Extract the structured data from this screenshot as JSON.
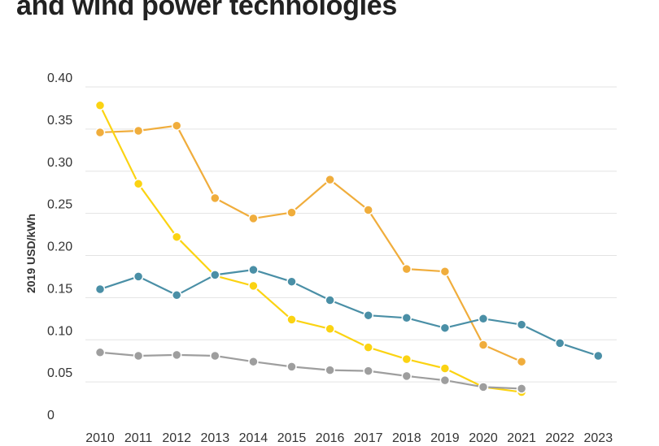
{
  "title": "and wind power technologies",
  "chart_data": {
    "type": "line",
    "title": "and wind power technologies",
    "xlabel": "",
    "ylabel": "2019 USD/kWh",
    "ylim": [
      0,
      0.4
    ],
    "yticks": [
      "0",
      "0.05",
      "0.10",
      "0.15",
      "0.20",
      "0.25",
      "0.30",
      "0.35",
      "0.40"
    ],
    "x": [
      "2010",
      "2011",
      "2012",
      "2013",
      "2014",
      "2015",
      "2016",
      "2017",
      "2018",
      "2019",
      "2020",
      "2021",
      "2022",
      "2023"
    ],
    "grid": true,
    "legend": "none",
    "series": [
      {
        "color": "#f0ad3c",
        "values": [
          0.346,
          0.348,
          0.354,
          0.268,
          0.244,
          0.251,
          0.29,
          0.254,
          0.184,
          0.181,
          0.094,
          0.074,
          null,
          null
        ]
      },
      {
        "color": "#fbd312",
        "values": [
          0.378,
          0.285,
          0.222,
          0.176,
          0.164,
          0.124,
          0.113,
          0.091,
          0.077,
          0.066,
          0.044,
          0.038,
          null,
          null
        ]
      },
      {
        "color": "#4a8fa6",
        "values": [
          0.16,
          0.175,
          0.153,
          0.177,
          0.183,
          0.169,
          0.147,
          0.129,
          0.126,
          0.114,
          0.125,
          0.118,
          0.096,
          0.081
        ]
      },
      {
        "color": "#9e9e9e",
        "values": [
          0.085,
          0.081,
          0.082,
          0.081,
          0.074,
          0.068,
          0.064,
          0.063,
          0.057,
          0.052,
          0.044,
          0.042,
          null,
          null
        ]
      }
    ]
  }
}
